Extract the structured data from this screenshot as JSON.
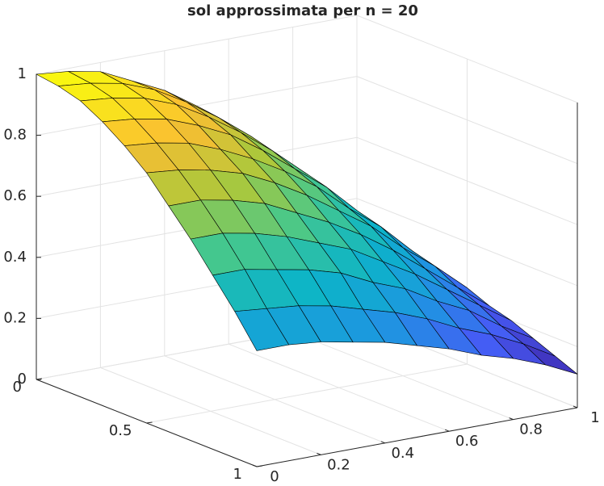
{
  "chart_data": {
    "type": "surface",
    "title": "sol approssimata per n = 20",
    "x": [
      0,
      0.1,
      0.2,
      0.3,
      0.4,
      0.5,
      0.6,
      0.7,
      0.8,
      0.9,
      1
    ],
    "y": [
      0,
      0.1,
      0.2,
      0.3,
      0.4,
      0.5,
      0.6,
      0.7,
      0.8,
      0.9,
      1
    ],
    "z": [
      [
        1,
        0.99,
        0.97,
        0.92,
        0.87,
        0.8,
        0.71,
        0.62,
        0.52,
        0.41,
        0.3
      ],
      [
        0.99,
        0.98,
        0.96,
        0.92,
        0.86,
        0.79,
        0.71,
        0.61,
        0.51,
        0.41,
        0.3
      ],
      [
        0.97,
        0.96,
        0.94,
        0.9,
        0.84,
        0.77,
        0.69,
        0.6,
        0.5,
        0.4,
        0.29
      ],
      [
        0.93,
        0.92,
        0.9,
        0.86,
        0.81,
        0.74,
        0.66,
        0.58,
        0.48,
        0.38,
        0.28
      ],
      [
        0.88,
        0.87,
        0.85,
        0.81,
        0.76,
        0.7,
        0.63,
        0.54,
        0.46,
        0.36,
        0.26
      ],
      [
        0.82,
        0.81,
        0.79,
        0.76,
        0.71,
        0.65,
        0.58,
        0.51,
        0.42,
        0.34,
        0.25
      ],
      [
        0.74,
        0.74,
        0.72,
        0.69,
        0.64,
        0.59,
        0.53,
        0.46,
        0.38,
        0.3,
        0.22
      ],
      [
        0.66,
        0.66,
        0.64,
        0.61,
        0.57,
        0.53,
        0.47,
        0.41,
        0.34,
        0.27,
        0.2
      ],
      [
        0.57,
        0.57,
        0.55,
        0.53,
        0.5,
        0.45,
        0.41,
        0.35,
        0.3,
        0.23,
        0.17
      ],
      [
        0.48,
        0.47,
        0.46,
        0.44,
        0.41,
        0.38,
        0.34,
        0.29,
        0.25,
        0.2,
        0.14
      ],
      [
        0.38,
        0.38,
        0.37,
        0.35,
        0.33,
        0.3,
        0.27,
        0.23,
        0.2,
        0.16,
        0.11
      ]
    ],
    "xlim": [
      0,
      1
    ],
    "ylim": [
      0,
      1
    ],
    "zlim": [
      0,
      1
    ],
    "xticks": [
      0,
      0.2,
      0.4,
      0.6,
      0.8,
      1
    ],
    "yticks": [
      0,
      0.5,
      1
    ],
    "zticks": [
      0,
      0.2,
      0.4,
      0.6,
      0.8,
      1
    ],
    "grid": true,
    "colormap": [
      "#3e26a8",
      "#465af5",
      "#1e96e1",
      "#0cb4c8",
      "#46c88c",
      "#aac83c",
      "#fabe32",
      "#f9fb0e"
    ]
  }
}
